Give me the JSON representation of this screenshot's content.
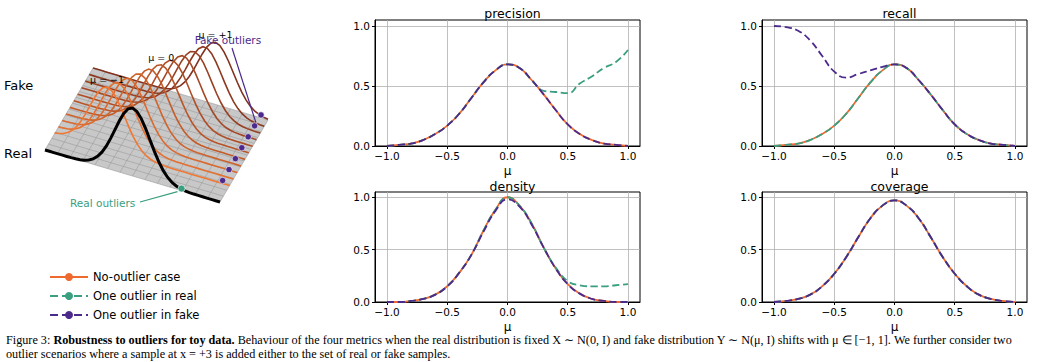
{
  "illustration": {
    "fake_label": "Fake",
    "real_label": "Real",
    "curve_labels": [
      "μ = −1",
      "μ = 0",
      "μ = +1"
    ],
    "fake_outliers_label": "Fake outliers",
    "real_outliers_label": "Real outliers"
  },
  "chart_data": [
    {
      "type": "line",
      "title": "precision",
      "xlabel": "μ",
      "x": [
        -1.0,
        -0.9,
        -0.8,
        -0.7,
        -0.6,
        -0.5,
        -0.4,
        -0.3,
        -0.2,
        -0.1,
        0.0,
        0.1,
        0.2,
        0.3,
        0.4,
        0.5,
        0.6,
        0.7,
        0.8,
        0.9,
        1.0
      ],
      "series": [
        {
          "name": "No-outlier case",
          "color": "#ee6a2f",
          "line_style": "solid",
          "values": [
            0.0,
            0.01,
            0.02,
            0.05,
            0.1,
            0.17,
            0.27,
            0.4,
            0.53,
            0.63,
            0.68,
            0.65,
            0.55,
            0.43,
            0.3,
            0.18,
            0.1,
            0.05,
            0.02,
            0.01,
            0.0
          ]
        },
        {
          "name": "One outlier in real",
          "color": "#3a9e80",
          "line_style": "dashed",
          "values": [
            0.0,
            0.01,
            0.02,
            0.05,
            0.1,
            0.17,
            0.27,
            0.4,
            0.53,
            0.63,
            0.68,
            0.65,
            0.55,
            0.46,
            0.45,
            0.44,
            0.52,
            0.58,
            0.65,
            0.7,
            0.8
          ]
        },
        {
          "name": "One outlier in fake",
          "color": "#4c2a8c",
          "line_style": "dashed",
          "values": [
            0.0,
            0.01,
            0.02,
            0.05,
            0.1,
            0.17,
            0.27,
            0.4,
            0.53,
            0.63,
            0.68,
            0.65,
            0.55,
            0.43,
            0.3,
            0.18,
            0.1,
            0.05,
            0.02,
            0.01,
            0.0
          ]
        }
      ],
      "xlim": [
        -1.1,
        1.1
      ],
      "xticks": [
        {
          "value": -1.0,
          "label": "−1.0"
        },
        {
          "value": -0.5,
          "label": "−0.5"
        },
        {
          "value": 0,
          "label": "0.0"
        },
        {
          "value": 0.5,
          "label": "0.5"
        },
        {
          "value": 1.0,
          "label": "1.0"
        }
      ],
      "ylim": [
        0,
        1.05
      ],
      "yticks": [
        {
          "value": 0,
          "label": "0.0"
        },
        {
          "value": 0.5,
          "label": "0.5"
        },
        {
          "value": 1.0,
          "label": "1.0"
        }
      ],
      "grid": true,
      "legend": "left"
    },
    {
      "type": "line",
      "title": "recall",
      "xlabel": "μ",
      "x": [
        -1.0,
        -0.9,
        -0.8,
        -0.7,
        -0.6,
        -0.5,
        -0.4,
        -0.3,
        -0.2,
        -0.1,
        0.0,
        0.1,
        0.2,
        0.3,
        0.4,
        0.5,
        0.6,
        0.7,
        0.8,
        0.9,
        1.0
      ],
      "series": [
        {
          "name": "No-outlier case",
          "color": "#ee6a2f",
          "line_style": "solid",
          "values": [
            0.0,
            0.01,
            0.02,
            0.05,
            0.1,
            0.17,
            0.27,
            0.4,
            0.53,
            0.63,
            0.68,
            0.65,
            0.55,
            0.43,
            0.3,
            0.18,
            0.1,
            0.05,
            0.02,
            0.01,
            0.0
          ]
        },
        {
          "name": "One outlier in real",
          "color": "#3a9e80",
          "line_style": "dashed",
          "values": [
            0.0,
            0.01,
            0.02,
            0.05,
            0.1,
            0.17,
            0.27,
            0.4,
            0.53,
            0.63,
            0.68,
            0.65,
            0.55,
            0.43,
            0.3,
            0.18,
            0.1,
            0.05,
            0.02,
            0.01,
            0.0
          ]
        },
        {
          "name": "One outlier in fake",
          "color": "#4c2a8c",
          "line_style": "dashed",
          "values": [
            1.0,
            0.99,
            0.96,
            0.88,
            0.75,
            0.62,
            0.57,
            0.6,
            0.63,
            0.66,
            0.68,
            0.65,
            0.55,
            0.43,
            0.3,
            0.18,
            0.1,
            0.05,
            0.02,
            0.01,
            0.0
          ]
        }
      ],
      "xlim": [
        -1.1,
        1.1
      ],
      "xticks": [
        {
          "value": -1.0,
          "label": "−1.0"
        },
        {
          "value": -0.5,
          "label": "−0.5"
        },
        {
          "value": 0,
          "label": "0.0"
        },
        {
          "value": 0.5,
          "label": "0.5"
        },
        {
          "value": 1.0,
          "label": "1.0"
        }
      ],
      "ylim": [
        0,
        1.05
      ],
      "yticks": [
        {
          "value": 0,
          "label": "0.0"
        },
        {
          "value": 0.5,
          "label": "0.5"
        },
        {
          "value": 1.0,
          "label": "1.0"
        }
      ],
      "grid": true
    },
    {
      "type": "line",
      "title": "density",
      "xlabel": "μ",
      "x": [
        -1.0,
        -0.9,
        -0.8,
        -0.7,
        -0.6,
        -0.5,
        -0.4,
        -0.3,
        -0.2,
        -0.1,
        0.0,
        0.1,
        0.2,
        0.3,
        0.4,
        0.5,
        0.6,
        0.7,
        0.8,
        0.9,
        1.0
      ],
      "series": [
        {
          "name": "No-outlier case",
          "color": "#ee6a2f",
          "line_style": "solid",
          "values": [
            0.0,
            0.0,
            0.01,
            0.03,
            0.07,
            0.15,
            0.28,
            0.45,
            0.68,
            0.88,
            1.0,
            0.92,
            0.75,
            0.52,
            0.32,
            0.17,
            0.08,
            0.03,
            0.01,
            0.0,
            0.0
          ]
        },
        {
          "name": "One outlier in real",
          "color": "#3a9e80",
          "line_style": "dashed",
          "values": [
            0.0,
            0.0,
            0.01,
            0.03,
            0.07,
            0.15,
            0.28,
            0.45,
            0.68,
            0.88,
            1.0,
            0.92,
            0.75,
            0.52,
            0.33,
            0.2,
            0.16,
            0.15,
            0.15,
            0.16,
            0.17
          ]
        },
        {
          "name": "One outlier in fake",
          "color": "#4c2a8c",
          "line_style": "dashed",
          "values": [
            0.0,
            0.0,
            0.01,
            0.03,
            0.07,
            0.15,
            0.28,
            0.45,
            0.67,
            0.87,
            0.98,
            0.91,
            0.74,
            0.52,
            0.32,
            0.17,
            0.08,
            0.03,
            0.01,
            0.0,
            0.0
          ]
        }
      ],
      "xlim": [
        -1.1,
        1.1
      ],
      "xticks": [
        {
          "value": -1.0,
          "label": "−1.0"
        },
        {
          "value": -0.5,
          "label": "−0.5"
        },
        {
          "value": 0,
          "label": "0.0"
        },
        {
          "value": 0.5,
          "label": "0.5"
        },
        {
          "value": 1.0,
          "label": "1.0"
        }
      ],
      "ylim": [
        0,
        1.05
      ],
      "yticks": [
        {
          "value": 0,
          "label": "0.0"
        },
        {
          "value": 0.5,
          "label": "0.5"
        },
        {
          "value": 1.0,
          "label": "1.0"
        }
      ],
      "grid": true
    },
    {
      "type": "line",
      "title": "coverage",
      "xlabel": "μ",
      "x": [
        -1.0,
        -0.9,
        -0.8,
        -0.7,
        -0.6,
        -0.5,
        -0.4,
        -0.3,
        -0.2,
        -0.1,
        0.0,
        0.1,
        0.2,
        0.3,
        0.4,
        0.5,
        0.6,
        0.7,
        0.8,
        0.9,
        1.0
      ],
      "series": [
        {
          "name": "No-outlier case",
          "color": "#ee6a2f",
          "line_style": "solid",
          "values": [
            0.0,
            0.01,
            0.03,
            0.07,
            0.15,
            0.27,
            0.43,
            0.62,
            0.8,
            0.92,
            0.97,
            0.92,
            0.8,
            0.62,
            0.43,
            0.27,
            0.15,
            0.07,
            0.03,
            0.01,
            0.0
          ]
        },
        {
          "name": "One outlier in real",
          "color": "#3a9e80",
          "line_style": "dashed",
          "values": [
            0.0,
            0.01,
            0.03,
            0.07,
            0.15,
            0.27,
            0.43,
            0.62,
            0.8,
            0.92,
            0.97,
            0.92,
            0.8,
            0.62,
            0.43,
            0.27,
            0.15,
            0.07,
            0.03,
            0.01,
            0.0
          ]
        },
        {
          "name": "One outlier in fake",
          "color": "#4c2a8c",
          "line_style": "dashed",
          "values": [
            0.0,
            0.01,
            0.03,
            0.07,
            0.15,
            0.27,
            0.43,
            0.62,
            0.8,
            0.92,
            0.97,
            0.92,
            0.8,
            0.62,
            0.43,
            0.27,
            0.15,
            0.07,
            0.03,
            0.01,
            0.0
          ]
        }
      ],
      "xlim": [
        -1.1,
        1.1
      ],
      "xticks": [
        {
          "value": -1.0,
          "label": "−1.0"
        },
        {
          "value": -0.5,
          "label": "−0.5"
        },
        {
          "value": 0,
          "label": "0.0"
        },
        {
          "value": 0.5,
          "label": "0.5"
        },
        {
          "value": 1.0,
          "label": "1.0"
        }
      ],
      "ylim": [
        0,
        1.05
      ],
      "yticks": [
        {
          "value": 0,
          "label": "0.0"
        },
        {
          "value": 0.5,
          "label": "0.5"
        },
        {
          "value": 1.0,
          "label": "1.0"
        }
      ],
      "grid": true
    }
  ],
  "caption": {
    "label": "Figure 3:",
    "title": "Robustness to outliers for toy data.",
    "text": "Behaviour of the four metrics when the real distribution is fixed X ∼ N(0, I) and fake distribution Y ∼ N(μ, I) shifts with μ ∈ [−1, 1]. We further consider two outlier scenarios where a sample at x = +3 is added either to the set of real or fake samples."
  }
}
